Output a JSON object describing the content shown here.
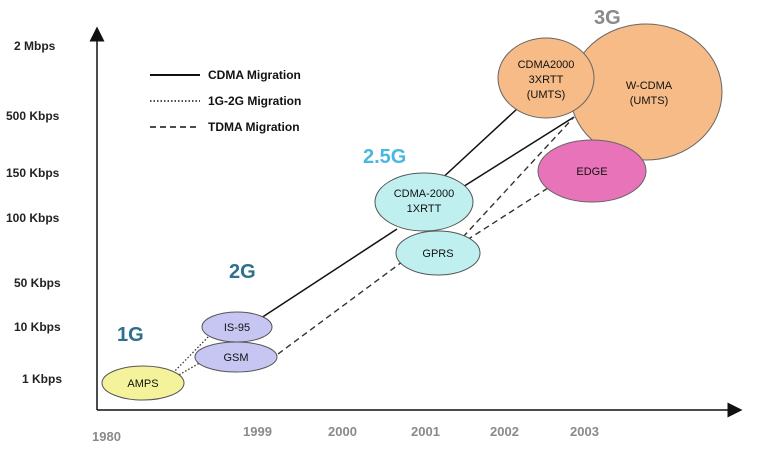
{
  "y_axis_labels": [
    "2 Mbps",
    "500 Kbps",
    "150 Kbps",
    "100 Kbps",
    "50 Kbps",
    "10 Kbps",
    "1 Kbps"
  ],
  "x_axis_labels": [
    "1980",
    "1999",
    "2000",
    "2001",
    "2002",
    "2003"
  ],
  "legend": {
    "cdma": "CDMA Migration",
    "g12": "1G-2G Migration",
    "tdma": "TDMA Migration"
  },
  "generations": {
    "g1": "1G",
    "g2": "2G",
    "g25": "2.5G",
    "g3": "3G"
  },
  "nodes": {
    "amps": {
      "lines": [
        "AMPS"
      ],
      "color": "#f4f29a"
    },
    "is95": {
      "lines": [
        "IS-95"
      ],
      "color": "#c7c6f3"
    },
    "gsm": {
      "lines": [
        "GSM"
      ],
      "color": "#c7c6f3"
    },
    "cdma1x": {
      "lines": [
        "CDMA-2000",
        "1XRTT"
      ],
      "color": "#bff0ef"
    },
    "gprs": {
      "lines": [
        "GPRS"
      ],
      "color": "#bff0ef"
    },
    "cdma3x": {
      "lines": [
        "CDMA2000",
        "3XRTT",
        "(UMTS)"
      ],
      "color": "#f6bb86"
    },
    "wcdma": {
      "lines": [
        "W-CDMA",
        "(UMTS)"
      ],
      "color": "#f6bb86"
    },
    "edge": {
      "lines": [
        "EDGE"
      ],
      "color": "#e873b8"
    }
  },
  "colors": {
    "g1": "#2e6f8e",
    "g2": "#2e6f8e",
    "g25": "#4ab7e3",
    "g3": "#8a8a8a"
  }
}
